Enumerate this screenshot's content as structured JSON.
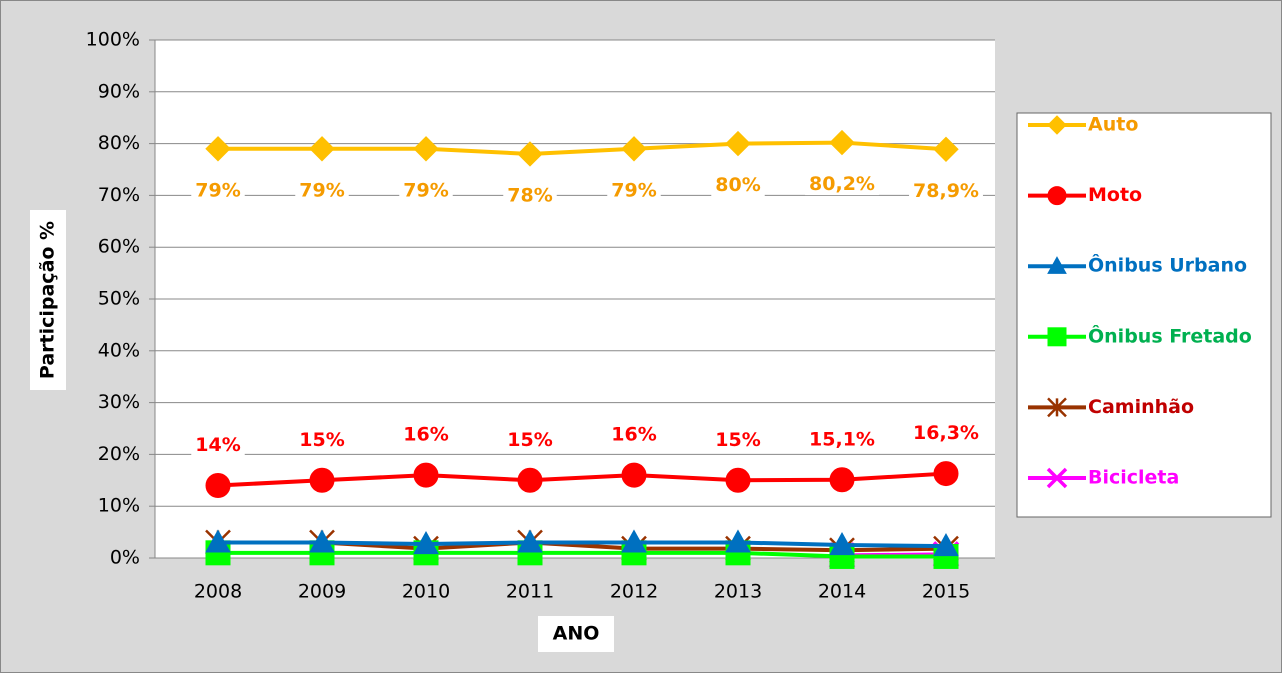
{
  "chart_data": {
    "type": "line",
    "x_label": "ANO",
    "y_label": "Participação %",
    "categories": [
      "2008",
      "2009",
      "2010",
      "2011",
      "2012",
      "2013",
      "2014",
      "2015"
    ],
    "ylim": [
      0,
      100
    ],
    "yticks": [
      {
        "value": 0,
        "label": "0%"
      },
      {
        "value": 10,
        "label": "10%"
      },
      {
        "value": 20,
        "label": "20%"
      },
      {
        "value": 30,
        "label": "30%"
      },
      {
        "value": 40,
        "label": "40%"
      },
      {
        "value": 50,
        "label": "50%"
      },
      {
        "value": 60,
        "label": "60%"
      },
      {
        "value": 70,
        "label": "70%"
      },
      {
        "value": 80,
        "label": "80%"
      },
      {
        "value": 90,
        "label": "90%"
      },
      {
        "value": 100,
        "label": "100%"
      }
    ],
    "grid": true,
    "legend": "right",
    "series": [
      {
        "name": "Auto",
        "color": "#FFC000",
        "text_color": "#F59B00",
        "marker": "diamond",
        "label_position": "below",
        "values": [
          79,
          79,
          79,
          78,
          79,
          80,
          80.2,
          78.9
        ],
        "value_labels": [
          "79%",
          "79%",
          "79%",
          "78%",
          "79%",
          "80%",
          "80,2%",
          "78,9%"
        ]
      },
      {
        "name": "Moto",
        "color": "#FF0000",
        "text_color": "#FF0000",
        "marker": "circle",
        "label_position": "above",
        "values": [
          14,
          15,
          16,
          15,
          16,
          15,
          15.1,
          16.3
        ],
        "value_labels": [
          "14%",
          "15%",
          "16%",
          "15%",
          "16%",
          "15%",
          "15,1%",
          "16,3%"
        ]
      },
      {
        "name": "Ônibus Urbano",
        "color": "#0070C0",
        "text_color": "#0070C0",
        "marker": "triangle",
        "values": [
          3,
          3,
          2.7,
          3,
          3,
          3,
          2.5,
          2.3
        ]
      },
      {
        "name": "Ônibus Fretado",
        "color": "#00FF00",
        "text_color": "#00B050",
        "marker": "square",
        "values": [
          1,
          1,
          1,
          1,
          1,
          1,
          0.3,
          0.3
        ]
      },
      {
        "name": "Caminhão",
        "color": "#993300",
        "text_color": "#C00000",
        "marker": "star",
        "values": [
          3,
          3,
          1.8,
          3,
          1.8,
          1.8,
          1.5,
          1.8
        ]
      },
      {
        "name": "Bicicleta",
        "color": "#FF00FF",
        "text_color": "#FF00FF",
        "marker": "x",
        "values": [
          null,
          null,
          null,
          null,
          null,
          null,
          0.5,
          0.7
        ]
      }
    ]
  }
}
